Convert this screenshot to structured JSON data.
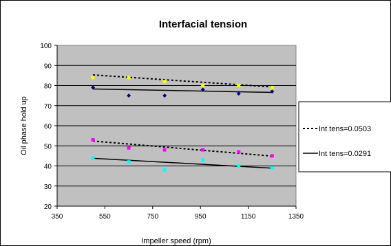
{
  "chart_data": {
    "type": "scatter",
    "title": "Interfacial tension",
    "xlabel": "Impeller speed (rpm)",
    "ylabel": "Oil phase hold up",
    "xlim": [
      350,
      1350
    ],
    "ylim": [
      20,
      100
    ],
    "x_ticks": [
      "350",
      "550",
      "750",
      "950",
      "1150",
      "1350"
    ],
    "y_ticks": [
      "20",
      "30",
      "40",
      "50",
      "60",
      "70",
      "80",
      "90",
      "100"
    ],
    "grid": "horizontal",
    "legend_position": "right",
    "plot_background": "#c0c0c0",
    "series": [
      {
        "id": "s1",
        "color": "#ffff00",
        "marker": "square",
        "x": [
          500,
          650,
          800,
          960,
          1110,
          1250
        ],
        "y": [
          84,
          84,
          82,
          80,
          80,
          79
        ]
      },
      {
        "id": "s2",
        "color": "#000080",
        "marker": "diamond",
        "x": [
          500,
          650,
          800,
          960,
          1110,
          1250
        ],
        "y": [
          79,
          75,
          75,
          78,
          76,
          77
        ]
      },
      {
        "id": "s3",
        "color": "#ff00ff",
        "marker": "square",
        "x": [
          500,
          650,
          800,
          960,
          1110,
          1250
        ],
        "y": [
          53,
          49,
          48,
          48,
          47,
          45
        ]
      },
      {
        "id": "s4",
        "color": "#00ffff",
        "marker": "square",
        "x": [
          500,
          650,
          800,
          960,
          1110,
          1250
        ],
        "y": [
          44,
          42,
          38,
          43,
          40,
          39
        ]
      }
    ],
    "trendlines": [
      {
        "name": "Int tens=0.0503",
        "style": "dotted",
        "color": "#000000",
        "x": [
          500,
          1250
        ],
        "y": [
          85.3,
          79.3
        ]
      },
      {
        "name": "Int tens=0.0291",
        "style": "solid",
        "color": "#000000",
        "x": [
          500,
          1250
        ],
        "y": [
          78.3,
          76.6
        ]
      },
      {
        "name": "",
        "style": "dotted",
        "color": "#000000",
        "x": [
          500,
          1250
        ],
        "y": [
          52.4,
          44.9
        ]
      },
      {
        "name": "",
        "style": "solid",
        "color": "#000000",
        "x": [
          500,
          1250
        ],
        "y": [
          43.8,
          38.9
        ]
      }
    ],
    "legend": [
      {
        "label": "Int tens=0.0503",
        "style": "dotted"
      },
      {
        "label": "Int tens=0.0291",
        "style": "solid"
      }
    ]
  }
}
